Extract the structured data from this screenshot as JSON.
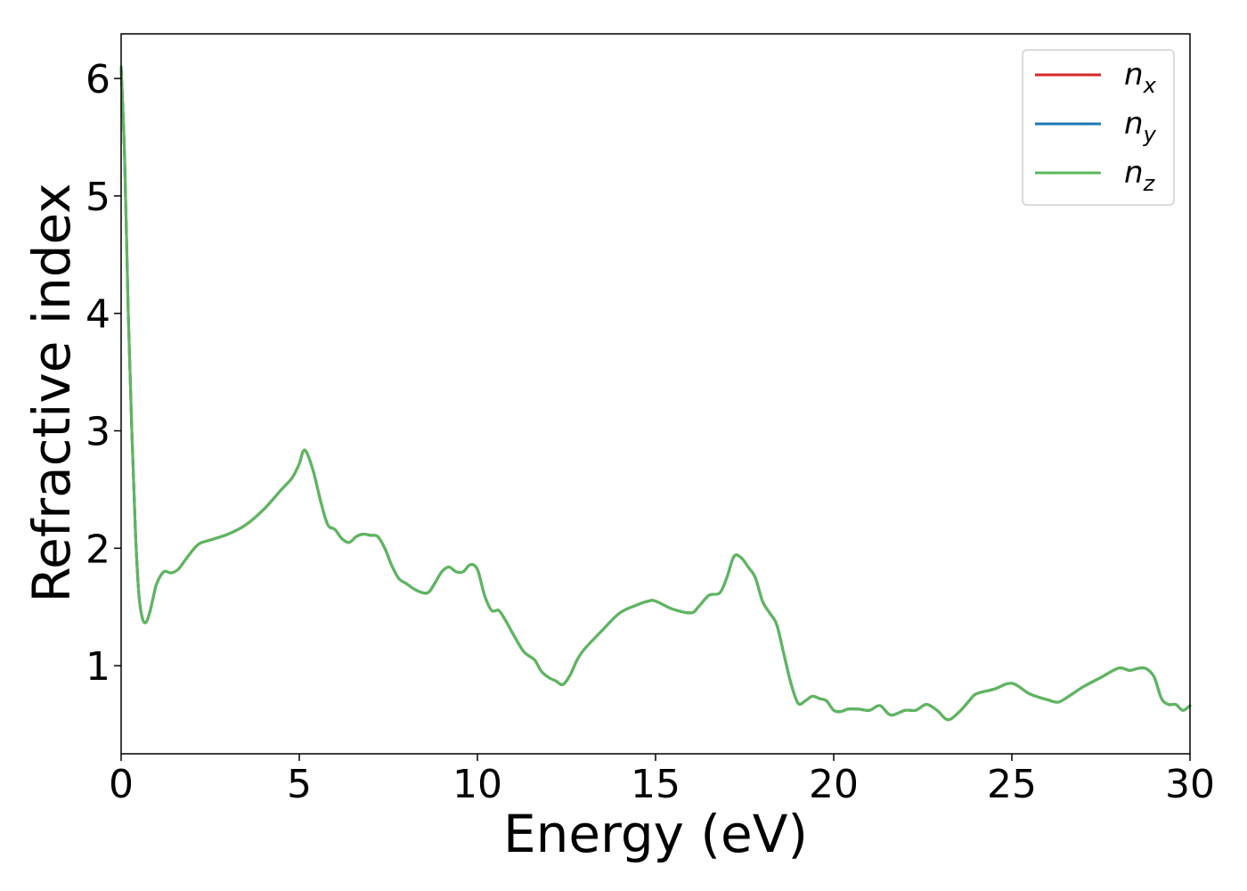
{
  "chart_data": {
    "type": "line",
    "title": "",
    "xlabel": "Energy (eV)",
    "ylabel": "Refractive index",
    "xlim": [
      0,
      30
    ],
    "ylim": [
      0.25,
      6.38
    ],
    "xticks": [
      0,
      5,
      10,
      15,
      20,
      25,
      30
    ],
    "yticks": [
      1,
      2,
      3,
      4,
      5,
      6
    ],
    "legend_position": "top-right",
    "grid": false,
    "series": [
      {
        "name": "n",
        "subscript": "x",
        "color": "#d62728",
        "x": [
          0,
          0.1,
          0.2,
          0.3,
          0.4,
          0.5,
          0.6,
          0.7,
          0.8,
          0.9,
          1.0,
          1.2,
          1.4,
          1.6,
          1.8,
          2.0,
          2.2,
          2.5,
          3.0,
          3.5,
          4.0,
          4.5,
          4.8,
          5.0,
          5.1,
          5.2,
          5.4,
          5.6,
          5.8,
          6.0,
          6.2,
          6.4,
          6.6,
          6.8,
          7.0,
          7.2,
          7.4,
          7.6,
          7.8,
          8.0,
          8.3,
          8.6,
          8.8,
          9.0,
          9.2,
          9.4,
          9.6,
          9.8,
          10.0,
          10.2,
          10.4,
          10.6,
          10.8,
          11.0,
          11.3,
          11.6,
          11.8,
          12.0,
          12.2,
          12.4,
          12.6,
          12.8,
          13.0,
          13.5,
          14.0,
          14.5,
          14.8,
          15.0,
          15.5,
          16.0,
          16.2,
          16.5,
          16.8,
          17.0,
          17.2,
          17.4,
          17.6,
          17.8,
          18.0,
          18.2,
          18.4,
          18.6,
          18.8,
          19.0,
          19.2,
          19.4,
          19.6,
          19.8,
          20.0,
          20.2,
          20.4,
          20.7,
          21.0,
          21.3,
          21.6,
          22.0,
          22.3,
          22.6,
          22.9,
          23.2,
          23.5,
          23.8,
          24.0,
          24.5,
          25.0,
          25.5,
          26.0,
          26.3,
          26.6,
          27.0,
          27.5,
          28.0,
          28.3,
          28.6,
          28.8,
          29.0,
          29.2,
          29.4,
          29.6,
          29.8,
          30.0
        ],
        "y": [
          6.1,
          5.3,
          4.0,
          3.0,
          2.15,
          1.6,
          1.4,
          1.37,
          1.45,
          1.58,
          1.7,
          1.8,
          1.79,
          1.82,
          1.9,
          1.98,
          2.04,
          2.07,
          2.12,
          2.2,
          2.33,
          2.5,
          2.6,
          2.72,
          2.82,
          2.82,
          2.65,
          2.4,
          2.2,
          2.16,
          2.08,
          2.05,
          2.1,
          2.12,
          2.11,
          2.1,
          2.0,
          1.85,
          1.74,
          1.7,
          1.64,
          1.62,
          1.7,
          1.8,
          1.84,
          1.8,
          1.8,
          1.86,
          1.82,
          1.6,
          1.47,
          1.47,
          1.38,
          1.27,
          1.12,
          1.05,
          0.95,
          0.9,
          0.87,
          0.84,
          0.92,
          1.05,
          1.14,
          1.3,
          1.45,
          1.52,
          1.55,
          1.55,
          1.48,
          1.45,
          1.5,
          1.6,
          1.62,
          1.75,
          1.93,
          1.92,
          1.84,
          1.75,
          1.55,
          1.45,
          1.35,
          1.1,
          0.85,
          0.68,
          0.7,
          0.74,
          0.72,
          0.7,
          0.62,
          0.61,
          0.63,
          0.63,
          0.62,
          0.66,
          0.58,
          0.62,
          0.62,
          0.67,
          0.62,
          0.54,
          0.6,
          0.7,
          0.76,
          0.8,
          0.85,
          0.76,
          0.71,
          0.69,
          0.74,
          0.82,
          0.9,
          0.98,
          0.96,
          0.98,
          0.97,
          0.9,
          0.72,
          0.67,
          0.67,
          0.62,
          0.66
        ],
        "hidden_by_overlap": true
      },
      {
        "name": "n",
        "subscript": "y",
        "color": "#1f77b4",
        "same_as": 0,
        "hidden_by_overlap": true
      },
      {
        "name": "n",
        "subscript": "z",
        "color": "#5cb85c",
        "same_as": 0
      }
    ]
  }
}
